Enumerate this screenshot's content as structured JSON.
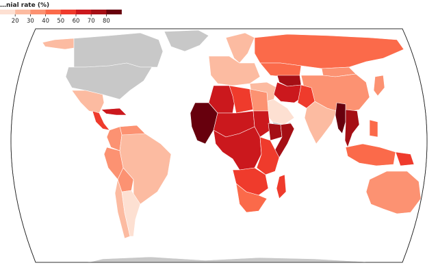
{
  "legend": {
    "title": "…nial rate (%)",
    "ticks": [
      "20",
      "30",
      "40",
      "50",
      "60",
      "70",
      "80"
    ],
    "colors": [
      "#fde0d2",
      "#fcbba1",
      "#fc9272",
      "#fb6a4a",
      "#ef3b2c",
      "#cb181d",
      "#a50f15",
      "#67000d"
    ]
  },
  "colors": {
    "no_data": "#c8c8c8",
    "ocean": "#ffffff",
    "border": "#222222"
  },
  "regions": [
    {
      "name": "Canada",
      "shade": 5
    },
    {
      "name": "Greenland",
      "shade": -1
    },
    {
      "name": "United States",
      "shade": -1
    },
    {
      "name": "Alaska",
      "shade": 1
    },
    {
      "name": "Mexico",
      "shade": 1
    },
    {
      "name": "Central America",
      "shade": 4
    },
    {
      "name": "Caribbean",
      "shade": 5
    },
    {
      "name": "Colombia",
      "shade": 2
    },
    {
      "name": "Venezuela",
      "shade": 2
    },
    {
      "name": "Brazil",
      "shade": 1
    },
    {
      "name": "Peru",
      "shade": 2
    },
    {
      "name": "Bolivia",
      "shade": 2
    },
    {
      "name": "Argentina",
      "shade": 0
    },
    {
      "name": "Chile",
      "shade": 1
    },
    {
      "name": "Europe",
      "shade": 1
    },
    {
      "name": "Scandinavia",
      "shade": 1
    },
    {
      "name": "Russia",
      "shade": 3
    },
    {
      "name": "Kazakhstan",
      "shade": 3
    },
    {
      "name": "Central Asia",
      "shade": 6
    },
    {
      "name": "Iran",
      "shade": 5
    },
    {
      "name": "Middle East",
      "shade": 1
    },
    {
      "name": "Arabia",
      "shade": 0
    },
    {
      "name": "Yemen",
      "shade": -1
    },
    {
      "name": "India",
      "shade": 1
    },
    {
      "name": "Pakistan",
      "shade": 4
    },
    {
      "name": "China",
      "shade": 2
    },
    {
      "name": "Mongolia",
      "shade": 2
    },
    {
      "name": "Myanmar",
      "shade": 7
    },
    {
      "name": "Thailand",
      "shade": 6
    },
    {
      "name": "Indonesia",
      "shade": 3
    },
    {
      "name": "Philippines",
      "shade": 3
    },
    {
      "name": "Japan",
      "shade": 2
    },
    {
      "name": "Australia",
      "shade": 2
    },
    {
      "name": "New Zealand",
      "shade": 2
    },
    {
      "name": "Papua New Guinea",
      "shade": 4
    },
    {
      "name": "Algeria",
      "shade": 5
    },
    {
      "name": "Libya",
      "shade": 4
    },
    {
      "name": "Egypt",
      "shade": 2
    },
    {
      "name": "West Africa",
      "shade": 7
    },
    {
      "name": "Sahel",
      "shade": 5
    },
    {
      "name": "Sudan",
      "shade": 5
    },
    {
      "name": "Ethiopia",
      "shade": 6
    },
    {
      "name": "Somalia",
      "shade": 6
    },
    {
      "name": "Central Africa",
      "shade": 5
    },
    {
      "name": "East Africa",
      "shade": 4
    },
    {
      "name": "Southern Africa",
      "shade": 4
    },
    {
      "name": "South Africa",
      "shade": 3
    },
    {
      "name": "Madagascar",
      "shade": 4
    },
    {
      "name": "Antarctica",
      "shade": -1
    }
  ]
}
